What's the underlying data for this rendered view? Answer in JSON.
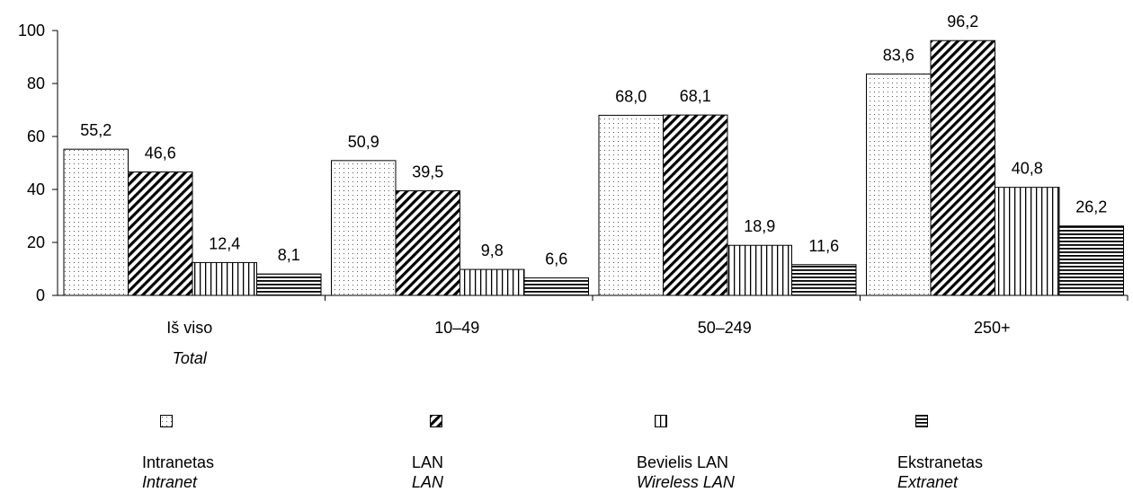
{
  "chart_data": {
    "type": "bar",
    "categories": [
      {
        "label": "Iš viso",
        "sublabel": "Total"
      },
      {
        "label": "10–49",
        "sublabel": ""
      },
      {
        "label": "50–249",
        "sublabel": ""
      },
      {
        "label": "250+",
        "sublabel": ""
      }
    ],
    "series": [
      {
        "name": "Intranetas",
        "name_alt": "Intranet",
        "pattern": "dots",
        "values": [
          55.2,
          50.9,
          68.0,
          83.6
        ],
        "labels": [
          "55,2",
          "50,9",
          "68,0",
          "83,6"
        ]
      },
      {
        "name": "LAN",
        "name_alt": "LAN",
        "pattern": "diagonal",
        "values": [
          46.6,
          39.5,
          68.1,
          96.2
        ],
        "labels": [
          "46,6",
          "39,5",
          "68,1",
          "96,2"
        ]
      },
      {
        "name": "Bevielis LAN",
        "name_alt": "Wireless LAN",
        "pattern": "vertical",
        "values": [
          12.4,
          9.8,
          18.9,
          40.8
        ],
        "labels": [
          "12,4",
          "9,8",
          "18,9",
          "40,8"
        ]
      },
      {
        "name": "Ekstranetas",
        "name_alt": "Extranet",
        "pattern": "horizontal",
        "values": [
          8.1,
          6.6,
          11.6,
          26.2
        ],
        "labels": [
          "8,1",
          "6,6",
          "11,6",
          "26,2"
        ]
      }
    ],
    "ylim": [
      0,
      100
    ],
    "yticks": [
      0,
      20,
      40,
      60,
      80,
      100
    ],
    "grid": false,
    "legend_position": "bottom"
  }
}
